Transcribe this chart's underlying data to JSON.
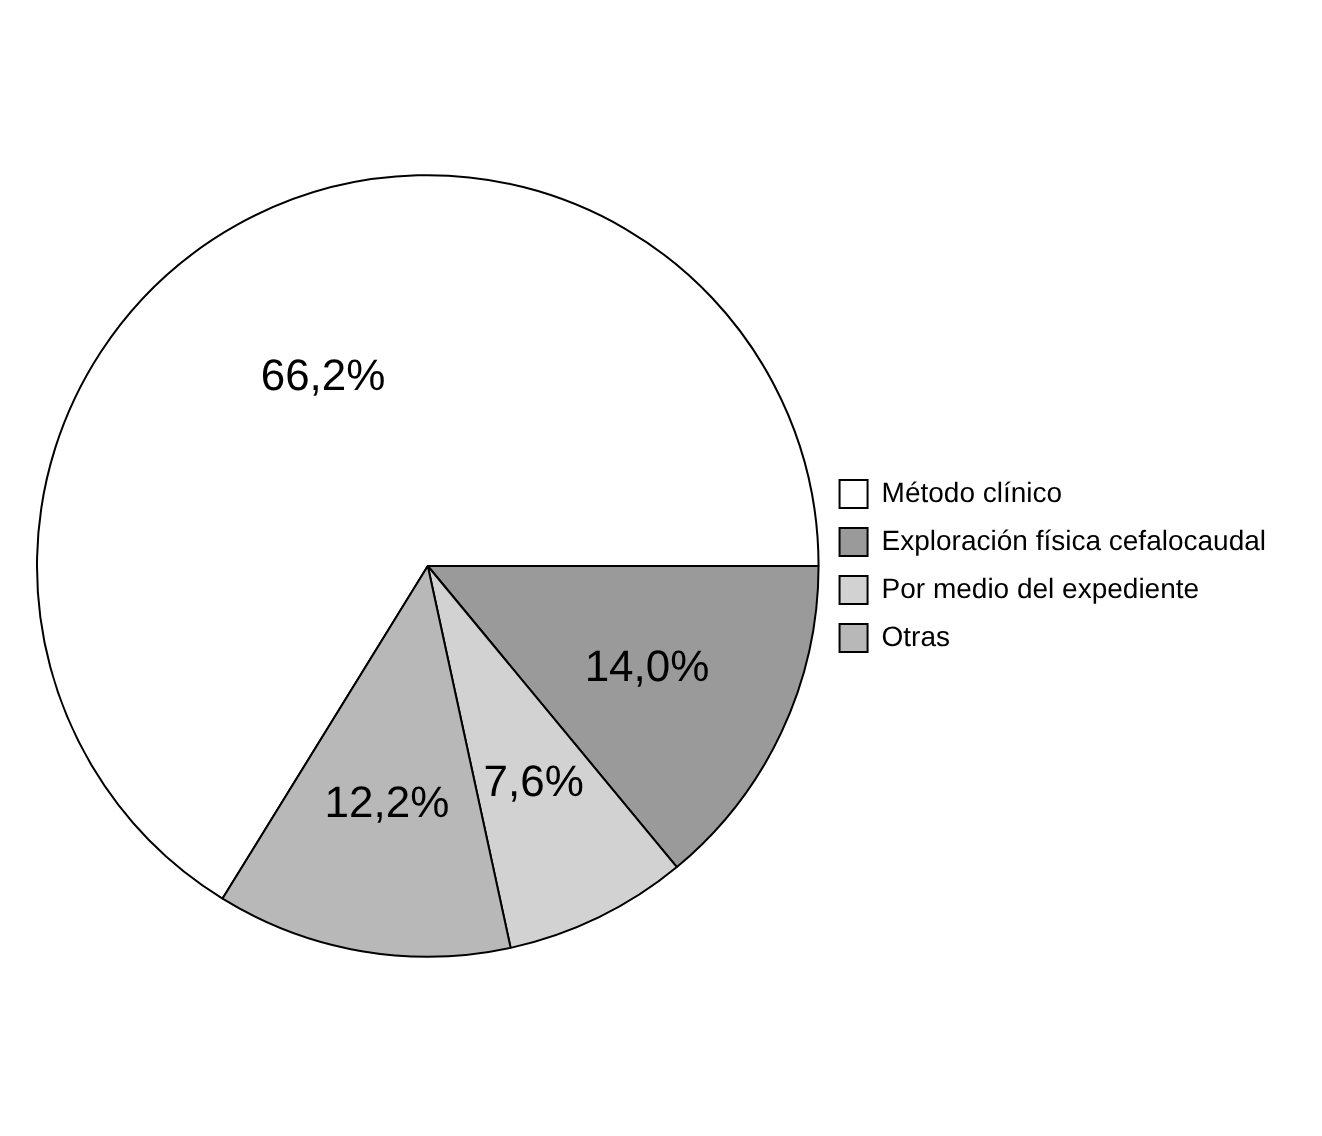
{
  "chart_data": {
    "type": "pie",
    "categories": [
      "Método clínico",
      "Exploración física cefalocaudal",
      "Por medio del expediente",
      "Otras"
    ],
    "values": [
      66.2,
      14.0,
      7.6,
      12.2
    ],
    "value_labels": [
      "66,2%",
      "14,0%",
      "7,6%",
      "12,2%"
    ],
    "colors": [
      "#ffffff",
      "#9a9a9a",
      "#d2d2d2",
      "#b8b8b8"
    ],
    "legend": "right"
  }
}
